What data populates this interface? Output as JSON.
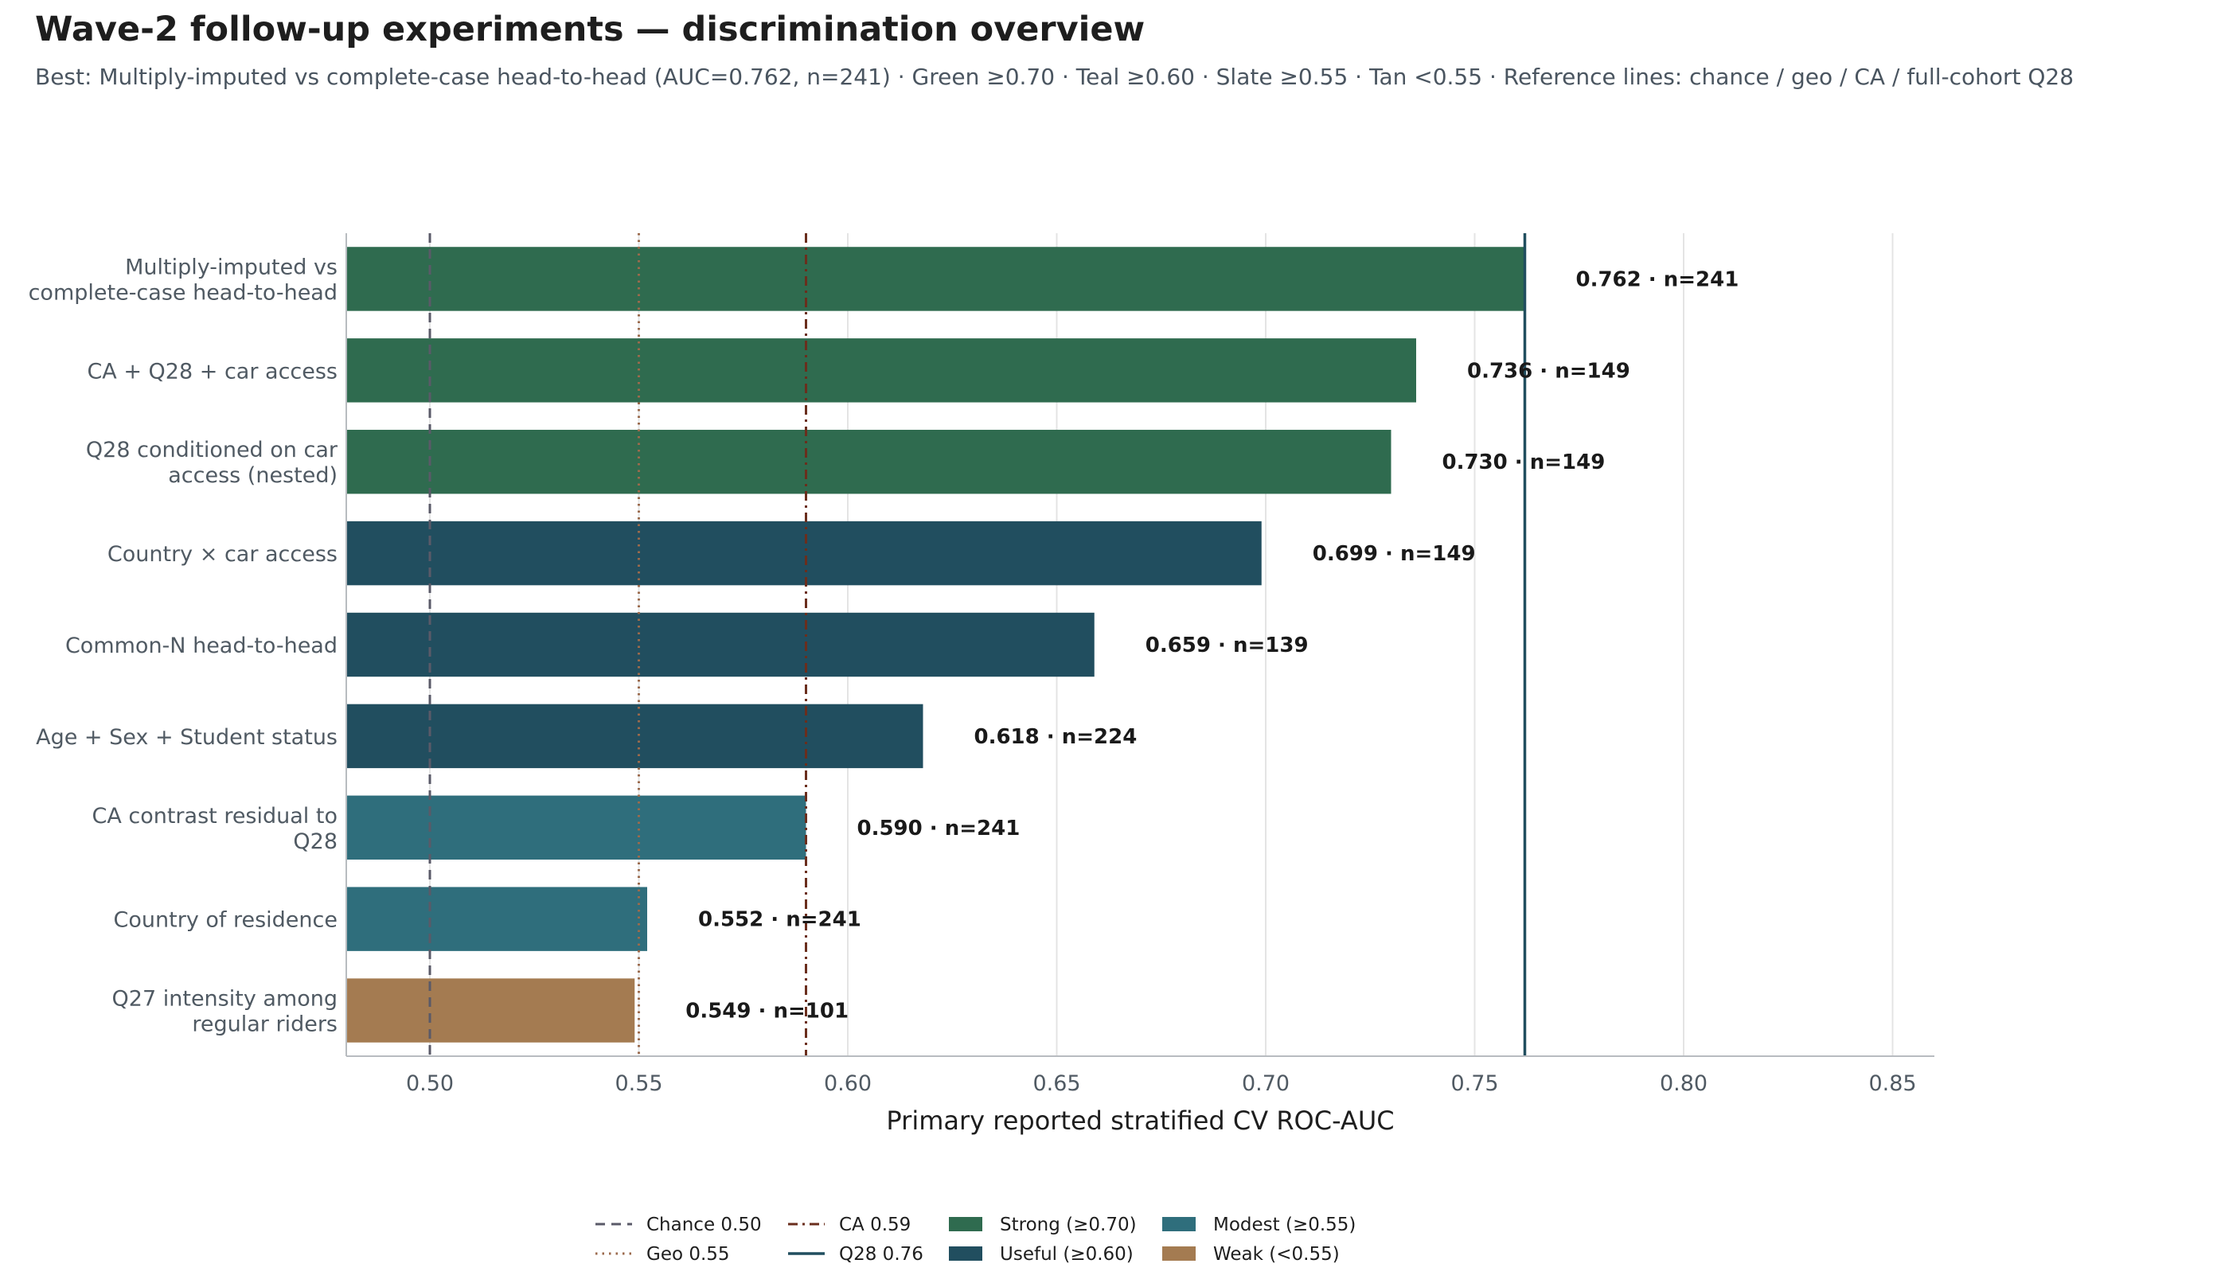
{
  "header": {
    "title": "Wave-2 follow-up experiments — discrimination overview",
    "subtitle": "Best: Multiply-imputed vs complete-case head-to-head (AUC=0.762, n=241)  ·  Green ≥0.70  ·  Teal ≥0.60  ·  Slate ≥0.55  ·  Tan <0.55  ·  Reference lines: chance / geo / CA / full-cohort Q28"
  },
  "chart_data": {
    "type": "bar",
    "orientation": "horizontal",
    "xlabel": "Primary reported stratified CV ROC-AUC",
    "xlim": [
      0.48,
      0.86
    ],
    "xticks": [
      "0.50",
      "0.55",
      "0.60",
      "0.65",
      "0.70",
      "0.75",
      "0.80",
      "0.85"
    ],
    "xtick_values": [
      0.5,
      0.55,
      0.6,
      0.65,
      0.7,
      0.75,
      0.8,
      0.85
    ],
    "grid": "vertical",
    "categories": [
      [
        "Multiply-imputed vs",
        "complete-case head-to-head"
      ],
      [
        "CA + Q28 + car access"
      ],
      [
        "Q28 conditioned on car",
        "access (nested)"
      ],
      [
        "Country × car access"
      ],
      [
        "Common-N head-to-head"
      ],
      [
        "Age + Sex + Student status"
      ],
      [
        "CA contrast residual to",
        "Q28"
      ],
      [
        "Country of residence"
      ],
      [
        "Q27 intensity among",
        "regular riders"
      ]
    ],
    "values": [
      0.762,
      0.736,
      0.73,
      0.699,
      0.659,
      0.618,
      0.59,
      0.552,
      0.549
    ],
    "tiers": [
      "strong",
      "strong",
      "strong",
      "useful",
      "useful",
      "useful",
      "modest",
      "modest",
      "weak"
    ],
    "data_labels": [
      "0.762  ·  n=241",
      "0.736  ·  n=149",
      "0.730  ·  n=149",
      "0.699  ·  n=149",
      "0.659  ·  n=139",
      "0.618  ·  n=224",
      "0.590  ·  n=241",
      "0.552  ·  n=241",
      "0.549  ·  n=101"
    ],
    "tier_colors": {
      "strong": "#2f6b4f",
      "useful": "#214e5f",
      "modest": "#2f6e7c",
      "weak": "#a47b51"
    },
    "reference_lines": [
      {
        "name": "Chance 0.50",
        "value": 0.5,
        "style": "dashed",
        "color": "#5a5a68"
      },
      {
        "name": "Geo 0.55",
        "value": 0.55,
        "style": "dotted",
        "color": "#9b6a4c"
      },
      {
        "name": "CA 0.59",
        "value": 0.59,
        "style": "dashdot",
        "color": "#6a2e1d"
      },
      {
        "name": "Q28 0.76",
        "value": 0.762,
        "style": "solid",
        "color": "#214e5f"
      }
    ],
    "legend_position": "bottom-center",
    "legend": [
      {
        "label": "Chance 0.50",
        "kind": "line",
        "ref": 0
      },
      {
        "label": "Geo 0.55",
        "kind": "line",
        "ref": 1
      },
      {
        "label": "CA 0.59",
        "kind": "line",
        "ref": 2
      },
      {
        "label": "Q28 0.76",
        "kind": "line",
        "ref": 3
      },
      {
        "label": "Strong (≥0.70)",
        "kind": "patch",
        "tier": "strong"
      },
      {
        "label": "Useful (≥0.60)",
        "kind": "patch",
        "tier": "useful"
      },
      {
        "label": "Modest (≥0.55)",
        "kind": "patch",
        "tier": "modest"
      },
      {
        "label": "Weak (<0.55)",
        "kind": "patch",
        "tier": "weak"
      }
    ]
  }
}
